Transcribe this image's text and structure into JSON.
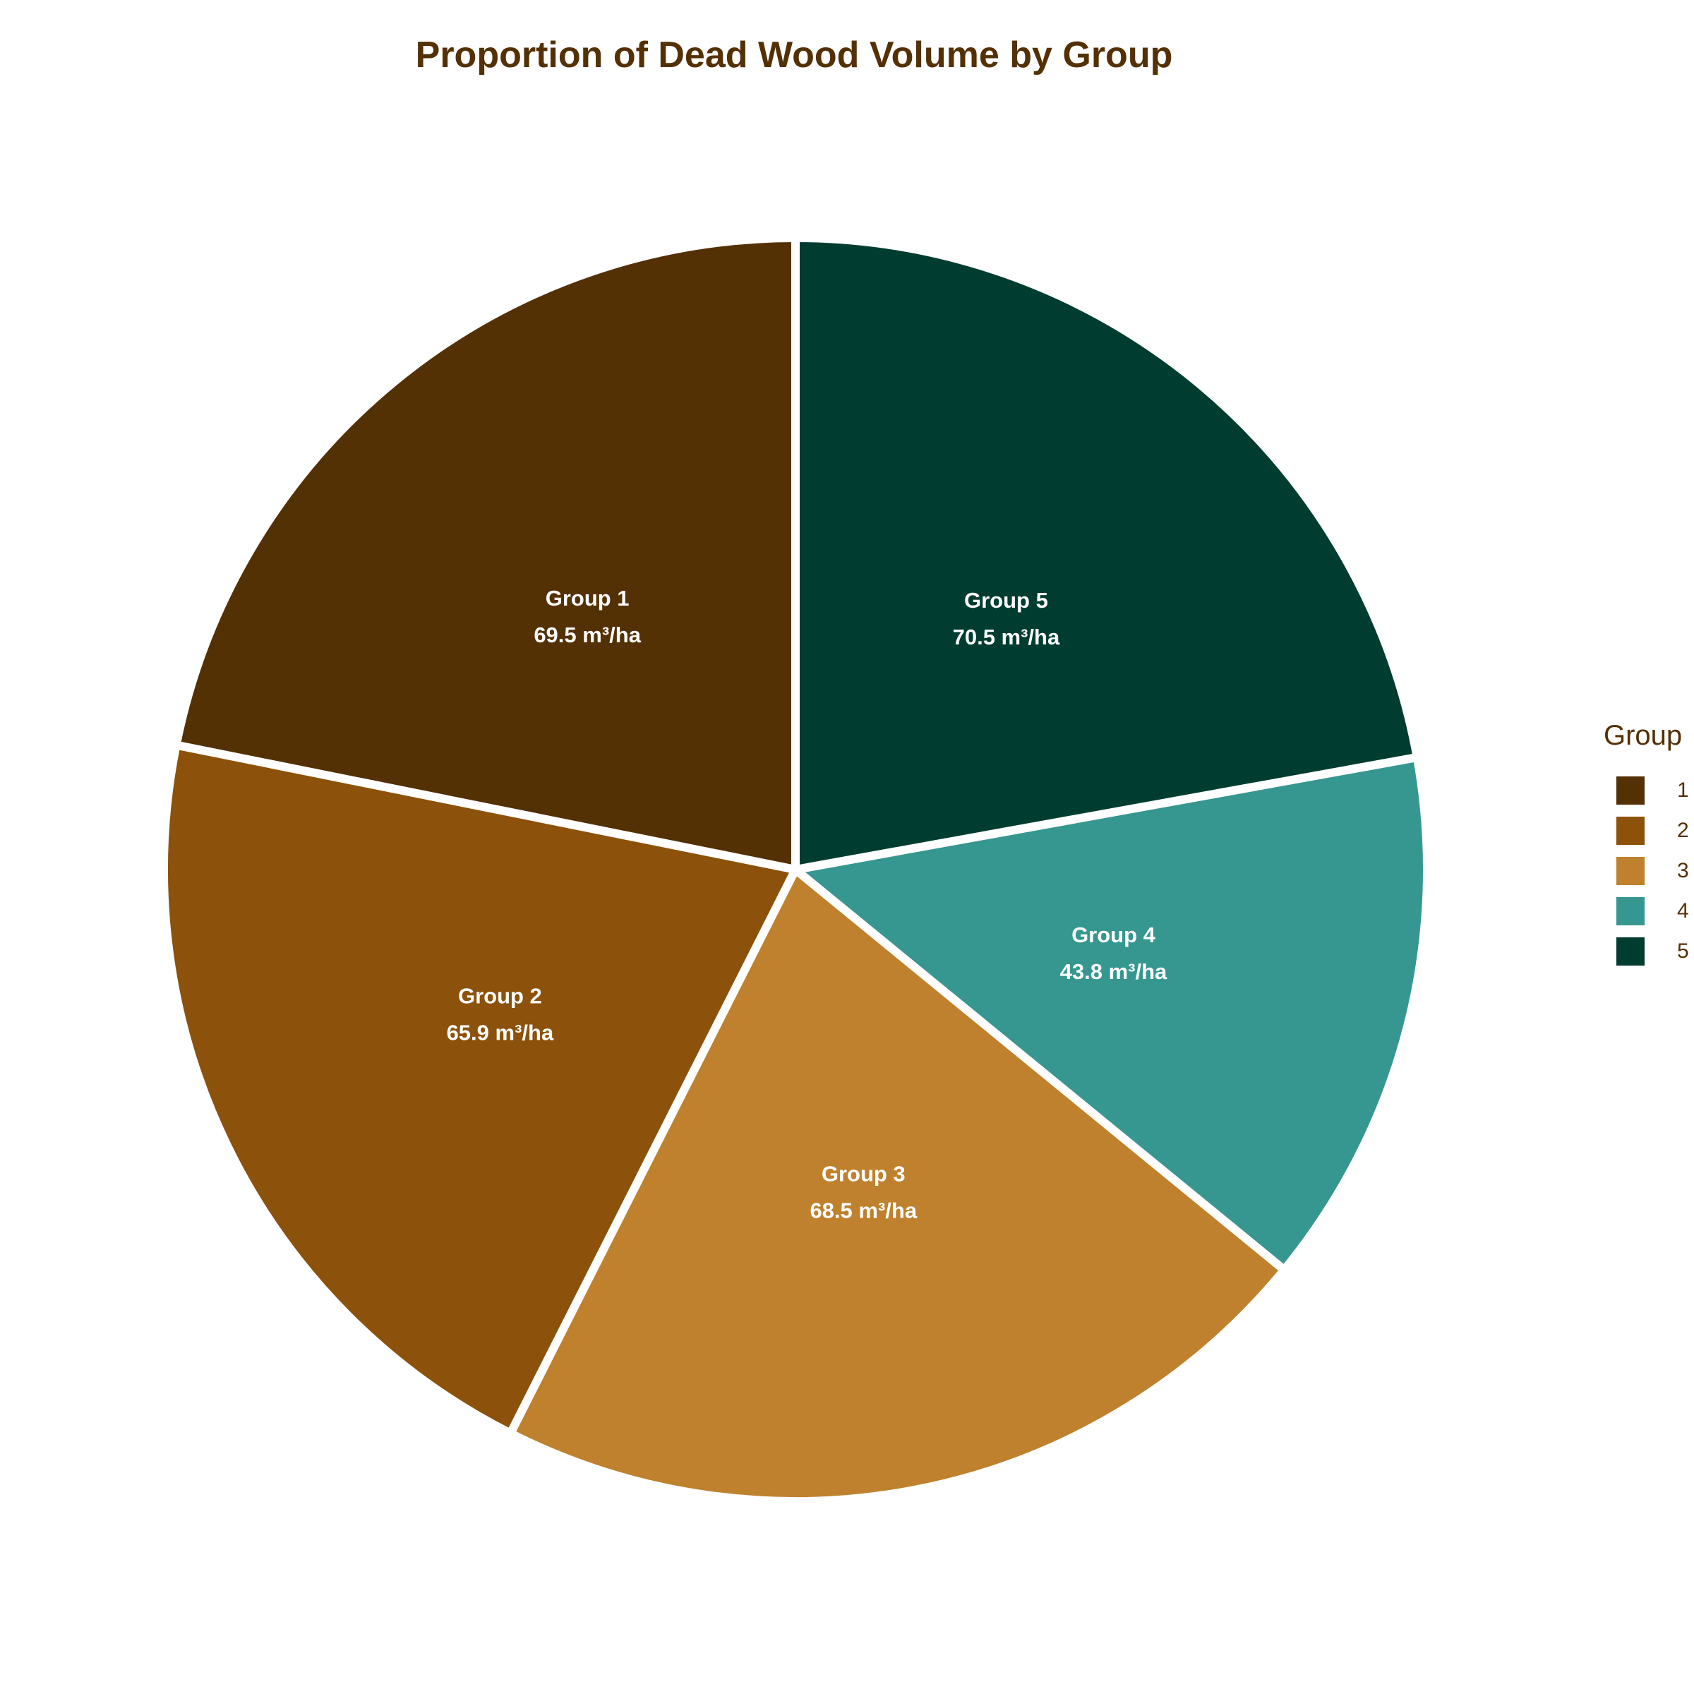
{
  "title": "Proportion of Dead Wood Volume by Group",
  "chart_data": {
    "type": "pie",
    "title": "Proportion of Dead Wood Volume by Group",
    "unit": "m³/ha",
    "slices": [
      {
        "category": "Group 1",
        "label": "69.5 m³/ha",
        "value": 69.5,
        "color": "#543005"
      },
      {
        "category": "Group 2",
        "label": "65.9 m³/ha",
        "value": 65.9,
        "color": "#8c510a"
      },
      {
        "category": "Group 3",
        "label": "68.5 m³/ha",
        "value": 68.5,
        "color": "#bf812d"
      },
      {
        "category": "Group 4",
        "label": "43.8 m³/ha",
        "value": 43.8,
        "color": "#35978f"
      },
      {
        "category": "Group 5",
        "label": "70.5 m³/ha",
        "value": 70.5,
        "color": "#01665e"
      }
    ],
    "direction": "counterclockwise",
    "start": "top",
    "legend": {
      "title": "Group",
      "position": "right",
      "items": [
        {
          "label": "1",
          "color": "#543005"
        },
        {
          "label": "2",
          "color": "#8c510a"
        },
        {
          "label": "3",
          "color": "#bf812d"
        },
        {
          "label": "4",
          "color": "#35978f"
        },
        {
          "label": "5",
          "color": "#003c30"
        }
      ]
    }
  }
}
